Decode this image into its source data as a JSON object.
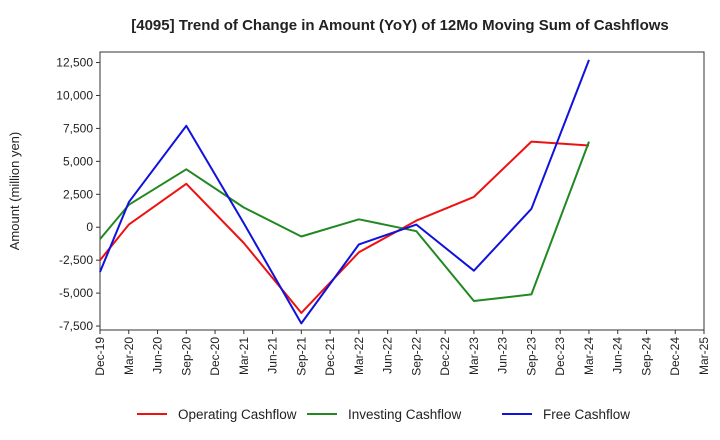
{
  "chart_data": {
    "type": "line",
    "title": "[4095]  Trend of Change in Amount (YoY) of 12Mo Moving Sum of Cashflows",
    "xlabel": "",
    "ylabel": "Amount (million yen)",
    "categories": [
      "Dec-19",
      "Mar-20",
      "Jun-20",
      "Sep-20",
      "Dec-20",
      "Mar-21",
      "Jun-21",
      "Sep-21",
      "Dec-21",
      "Mar-22",
      "Jun-22",
      "Sep-22",
      "Dec-22",
      "Mar-23",
      "Jun-23",
      "Sep-23",
      "Dec-23",
      "Mar-24",
      "Jun-24",
      "Sep-24",
      "Dec-24",
      "Mar-25"
    ],
    "ylim": [
      -7800,
      13300
    ],
    "yticks": [
      -7500,
      -5000,
      -2500,
      0,
      2500,
      5000,
      7500,
      10000,
      12500
    ],
    "ytick_labels": [
      "-7,500",
      "-5,000",
      "-2,500",
      "0",
      "2,500",
      "5,000",
      "7,500",
      "10,000",
      "12,500"
    ],
    "grid": true,
    "legend_position": "bottom",
    "series": [
      {
        "name": "Operating Cashflow",
        "color": "#ee1111",
        "values": [
          -2500,
          200,
          null,
          3300,
          null,
          -1200,
          null,
          -6500,
          null,
          -1900,
          null,
          500,
          null,
          2300,
          null,
          6500,
          null,
          6200,
          null,
          null,
          null,
          null
        ]
      },
      {
        "name": "Investing Cashflow",
        "color": "#228822",
        "values": [
          -900,
          1700,
          null,
          4400,
          null,
          1500,
          null,
          -700,
          null,
          600,
          null,
          -300,
          null,
          -5600,
          null,
          -5100,
          null,
          6500,
          null,
          null,
          null,
          null
        ]
      },
      {
        "name": "Free Cashflow",
        "color": "#1111dd",
        "values": [
          -3400,
          1900,
          null,
          7700,
          null,
          300,
          null,
          -7300,
          null,
          -1300,
          null,
          200,
          null,
          -3300,
          null,
          1400,
          null,
          12700,
          null,
          null,
          null,
          null
        ]
      }
    ]
  }
}
